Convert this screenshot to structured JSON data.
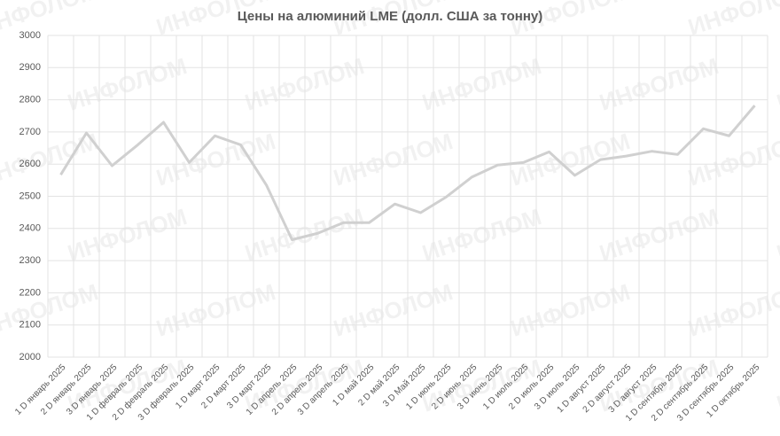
{
  "chart_data": {
    "type": "line",
    "title": "Цены на алюминий LME (долл. США за тонну)",
    "watermark": "ИНФОЛОМ",
    "categories": [
      "1 D январь 2025",
      "2 D январь 2025",
      "3 D январь 2025",
      "1 D февраль 2025",
      "2 D февраль 2025",
      "3 D февраль 2025",
      "1 D март 2025",
      "2 D март 2025",
      "3 D март 2025",
      "1 D апрель 2025",
      "2 D апрель 2025",
      "3 D апрель 2025",
      "1 D май 2025",
      "2 D май 2025",
      "3 D Май 2025",
      "1 D июнь 2025",
      "2 D июнь 2025",
      "3 D июнь 2025",
      "1 D июль 2025",
      "2 D июль 2025",
      "3 D июль 2025",
      "1 D август 2025",
      "2 D август 2025",
      "3 D август 2025",
      "1 D сентябрь 2025",
      "2 D сентябрь 2025",
      "3 D сентябрь 2025",
      "1 D октябрь 2025"
    ],
    "values": [
      2567,
      2697,
      2595,
      2660,
      2730,
      2605,
      2688,
      2660,
      2535,
      2365,
      2385,
      2418,
      2418,
      2476,
      2449,
      2498,
      2560,
      2597,
      2605,
      2638,
      2565,
      2614,
      2625,
      2640,
      2630,
      2710,
      2688,
      2782
    ],
    "color": "#d0d0d0",
    "ylim": [
      2000,
      3000
    ],
    "yticks": [
      2000,
      2100,
      2200,
      2300,
      2400,
      2500,
      2600,
      2700,
      2800,
      2900,
      3000
    ],
    "grid": true
  }
}
